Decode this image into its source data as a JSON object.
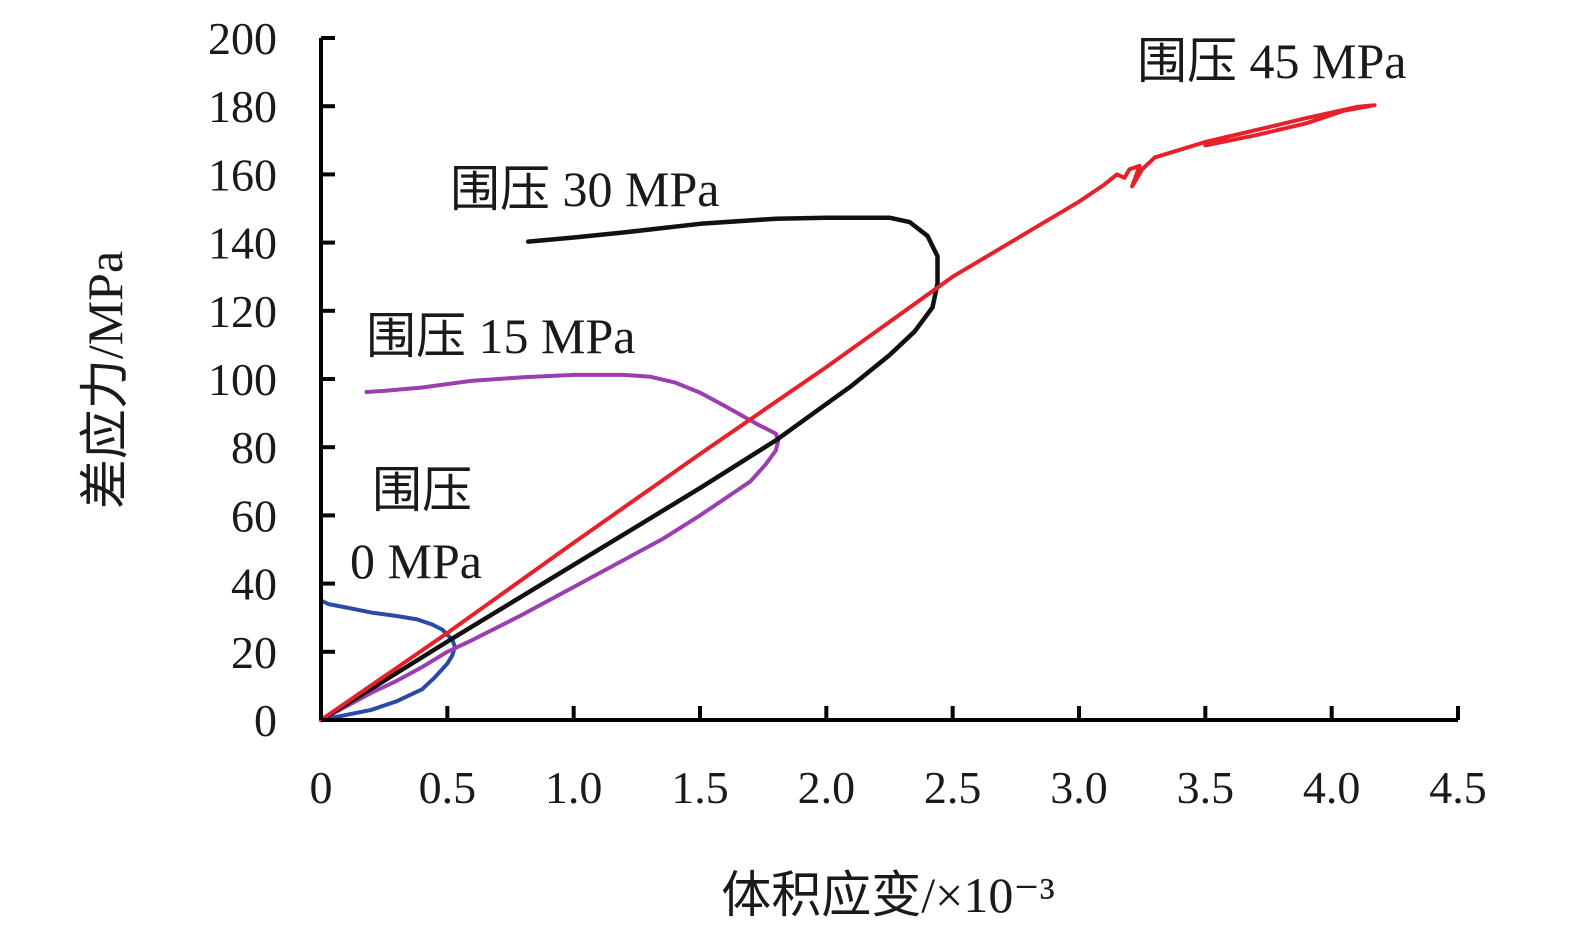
{
  "chart_data": {
    "type": "line",
    "title": "",
    "xlabel": "体积应变/×10⁻³",
    "ylabel": "差应力/MPa",
    "xlim": [
      0,
      4.5
    ],
    "ylim": [
      0,
      200
    ],
    "x_ticks": [
      0,
      0.5,
      1.0,
      1.5,
      2.0,
      2.5,
      3.0,
      3.5,
      4.0,
      4.5
    ],
    "x_tick_labels": [
      "0",
      "0.5",
      "1.0",
      "1.5",
      "2.0",
      "2.5",
      "3.0",
      "3.5",
      "4.0",
      "4.5"
    ],
    "y_ticks": [
      0,
      20,
      40,
      60,
      80,
      100,
      120,
      140,
      160,
      180,
      200
    ],
    "y_tick_labels": [
      "0",
      "20",
      "40",
      "60",
      "80",
      "100",
      "120",
      "140",
      "160",
      "180",
      "200"
    ],
    "grid": false,
    "legend": "none",
    "series": [
      {
        "name": "围压 0 MPa",
        "color": "#2b4aa8",
        "points": [
          [
            0,
            0
          ],
          [
            0.1,
            1.5
          ],
          [
            0.2,
            3
          ],
          [
            0.3,
            5.5
          ],
          [
            0.4,
            9
          ],
          [
            0.45,
            12.5
          ],
          [
            0.5,
            16.5
          ],
          [
            0.52,
            19
          ],
          [
            0.53,
            21.5
          ],
          [
            0.52,
            23.5
          ],
          [
            0.48,
            26.5
          ],
          [
            0.44,
            28
          ],
          [
            0.38,
            29.5
          ],
          [
            0.3,
            30.5
          ],
          [
            0.2,
            31.5
          ],
          [
            0.1,
            33
          ],
          [
            0.03,
            34
          ],
          [
            0,
            35
          ]
        ]
      },
      {
        "name": "围压 15 MPa",
        "color": "#9b3fb0",
        "points": [
          [
            0,
            0
          ],
          [
            0.1,
            4
          ],
          [
            0.2,
            8
          ],
          [
            0.3,
            11.5
          ],
          [
            0.4,
            15.5
          ],
          [
            0.5,
            20
          ],
          [
            0.6,
            23.5
          ],
          [
            0.8,
            31
          ],
          [
            1.0,
            39
          ],
          [
            1.2,
            47
          ],
          [
            1.35,
            53
          ],
          [
            1.5,
            60
          ],
          [
            1.6,
            65
          ],
          [
            1.7,
            70
          ],
          [
            1.76,
            75
          ],
          [
            1.8,
            79
          ],
          [
            1.81,
            82
          ],
          [
            1.8,
            84
          ],
          [
            1.72,
            87
          ],
          [
            1.6,
            92
          ],
          [
            1.5,
            96
          ],
          [
            1.4,
            99
          ],
          [
            1.3,
            100.7
          ],
          [
            1.2,
            101.2
          ],
          [
            1.0,
            101.2
          ],
          [
            0.8,
            100.5
          ],
          [
            0.6,
            99.5
          ],
          [
            0.4,
            97.5
          ],
          [
            0.25,
            96.5
          ],
          [
            0.18,
            96.2
          ]
        ]
      },
      {
        "name": "围压 30 MPa",
        "color": "#111111",
        "points": [
          [
            0,
            0
          ],
          [
            0.5,
            23
          ],
          [
            1.0,
            45.5
          ],
          [
            1.5,
            68
          ],
          [
            1.8,
            82
          ],
          [
            1.95,
            90
          ],
          [
            2.1,
            98
          ],
          [
            2.25,
            107
          ],
          [
            2.35,
            114
          ],
          [
            2.42,
            121
          ],
          [
            2.44,
            128
          ],
          [
            2.44,
            136
          ],
          [
            2.4,
            142
          ],
          [
            2.33,
            146
          ],
          [
            2.25,
            147.3
          ],
          [
            2.0,
            147.3
          ],
          [
            1.8,
            147
          ],
          [
            1.5,
            145.5
          ],
          [
            1.2,
            143
          ],
          [
            1.0,
            141.5
          ],
          [
            0.82,
            140.3
          ]
        ]
      },
      {
        "name": "围压 45 MPa",
        "color": "#e8202a",
        "points": [
          [
            0,
            0
          ],
          [
            0.5,
            25.5
          ],
          [
            1.0,
            52
          ],
          [
            1.5,
            78
          ],
          [
            2.0,
            103.5
          ],
          [
            2.5,
            130
          ],
          [
            3.0,
            152
          ],
          [
            3.1,
            157
          ],
          [
            3.15,
            160
          ],
          [
            3.18,
            159
          ],
          [
            3.2,
            161.5
          ],
          [
            3.24,
            162.5
          ],
          [
            3.21,
            156.5
          ],
          [
            3.25,
            161.5
          ],
          [
            3.3,
            165
          ],
          [
            3.5,
            169.5
          ],
          [
            3.7,
            173
          ],
          [
            3.9,
            176.5
          ],
          [
            4.1,
            179.8
          ],
          [
            4.17,
            180.3
          ],
          [
            4.05,
            178.7
          ],
          [
            3.9,
            175
          ],
          [
            3.7,
            171.5
          ],
          [
            3.5,
            168.5
          ]
        ]
      }
    ],
    "annotations": [
      {
        "id": "label-0",
        "lines": [
          "围压",
          "0 MPa"
        ]
      },
      {
        "id": "label-15",
        "lines": [
          "围压 15 MPa"
        ]
      },
      {
        "id": "label-30",
        "lines": [
          "围压 30 MPa"
        ]
      },
      {
        "id": "label-45",
        "lines": [
          "围压 45 MPa"
        ]
      }
    ]
  }
}
